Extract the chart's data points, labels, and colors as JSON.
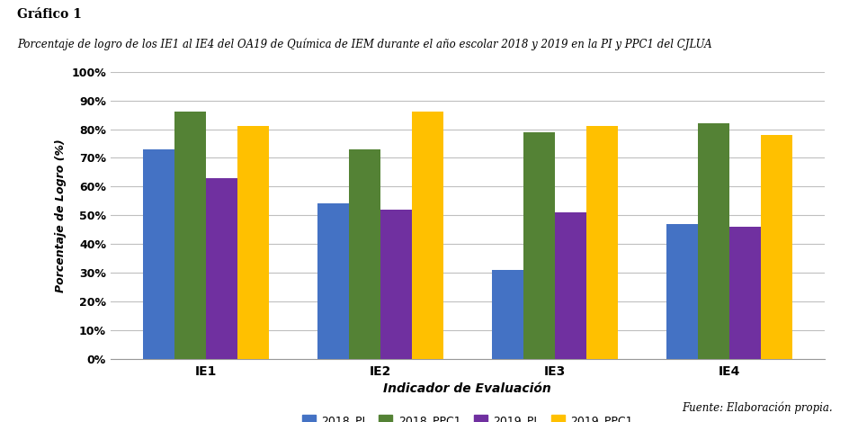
{
  "title_label": "Gráfico 1",
  "subtitle": "Porcentaje de logro de los IE₁ al IE₄ del OA₁₉ de Química de IEM durante el año escolar 2018 y 2019 en la PI y PPC₁ del CJLUA",
  "subtitle_raw": "Porcentaje de logro de los IE1 al IE4 del OA19 de Química de IEM durante el año escolar 2018 y 2019 en la PI y PPC1 del CJLUA",
  "categories": [
    "IE1",
    "IE2",
    "IE3",
    "IE4"
  ],
  "series": {
    "2018_PI": [
      0.73,
      0.54,
      0.31,
      0.47
    ],
    "2018_PPC1": [
      0.86,
      0.73,
      0.79,
      0.82
    ],
    "2019_PI": [
      0.63,
      0.52,
      0.51,
      0.46
    ],
    "2019_PPC1": [
      0.81,
      0.86,
      0.81,
      0.78
    ]
  },
  "colors": {
    "2018_PI": "#4472C4",
    "2018_PPC1": "#548235",
    "2019_PI": "#7030A0",
    "2019_PPC1": "#FFC000"
  },
  "ylabel": "Porcentaje de Logro (%)",
  "xlabel": "Indicador de Evaluación",
  "ylim": [
    0,
    1.0
  ],
  "yticks": [
    0.0,
    0.1,
    0.2,
    0.3,
    0.4,
    0.5,
    0.6,
    0.7,
    0.8,
    0.9,
    1.0
  ],
  "ytick_labels": [
    "0%",
    "10%",
    "20%",
    "30%",
    "40%",
    "50%",
    "60%",
    "70%",
    "80%",
    "90%",
    "100%"
  ],
  "source_text": "Fuente: Elaboración propia.",
  "background_color": "#FFFFFF",
  "grid_color": "#BFBFBF",
  "bar_width": 0.18
}
